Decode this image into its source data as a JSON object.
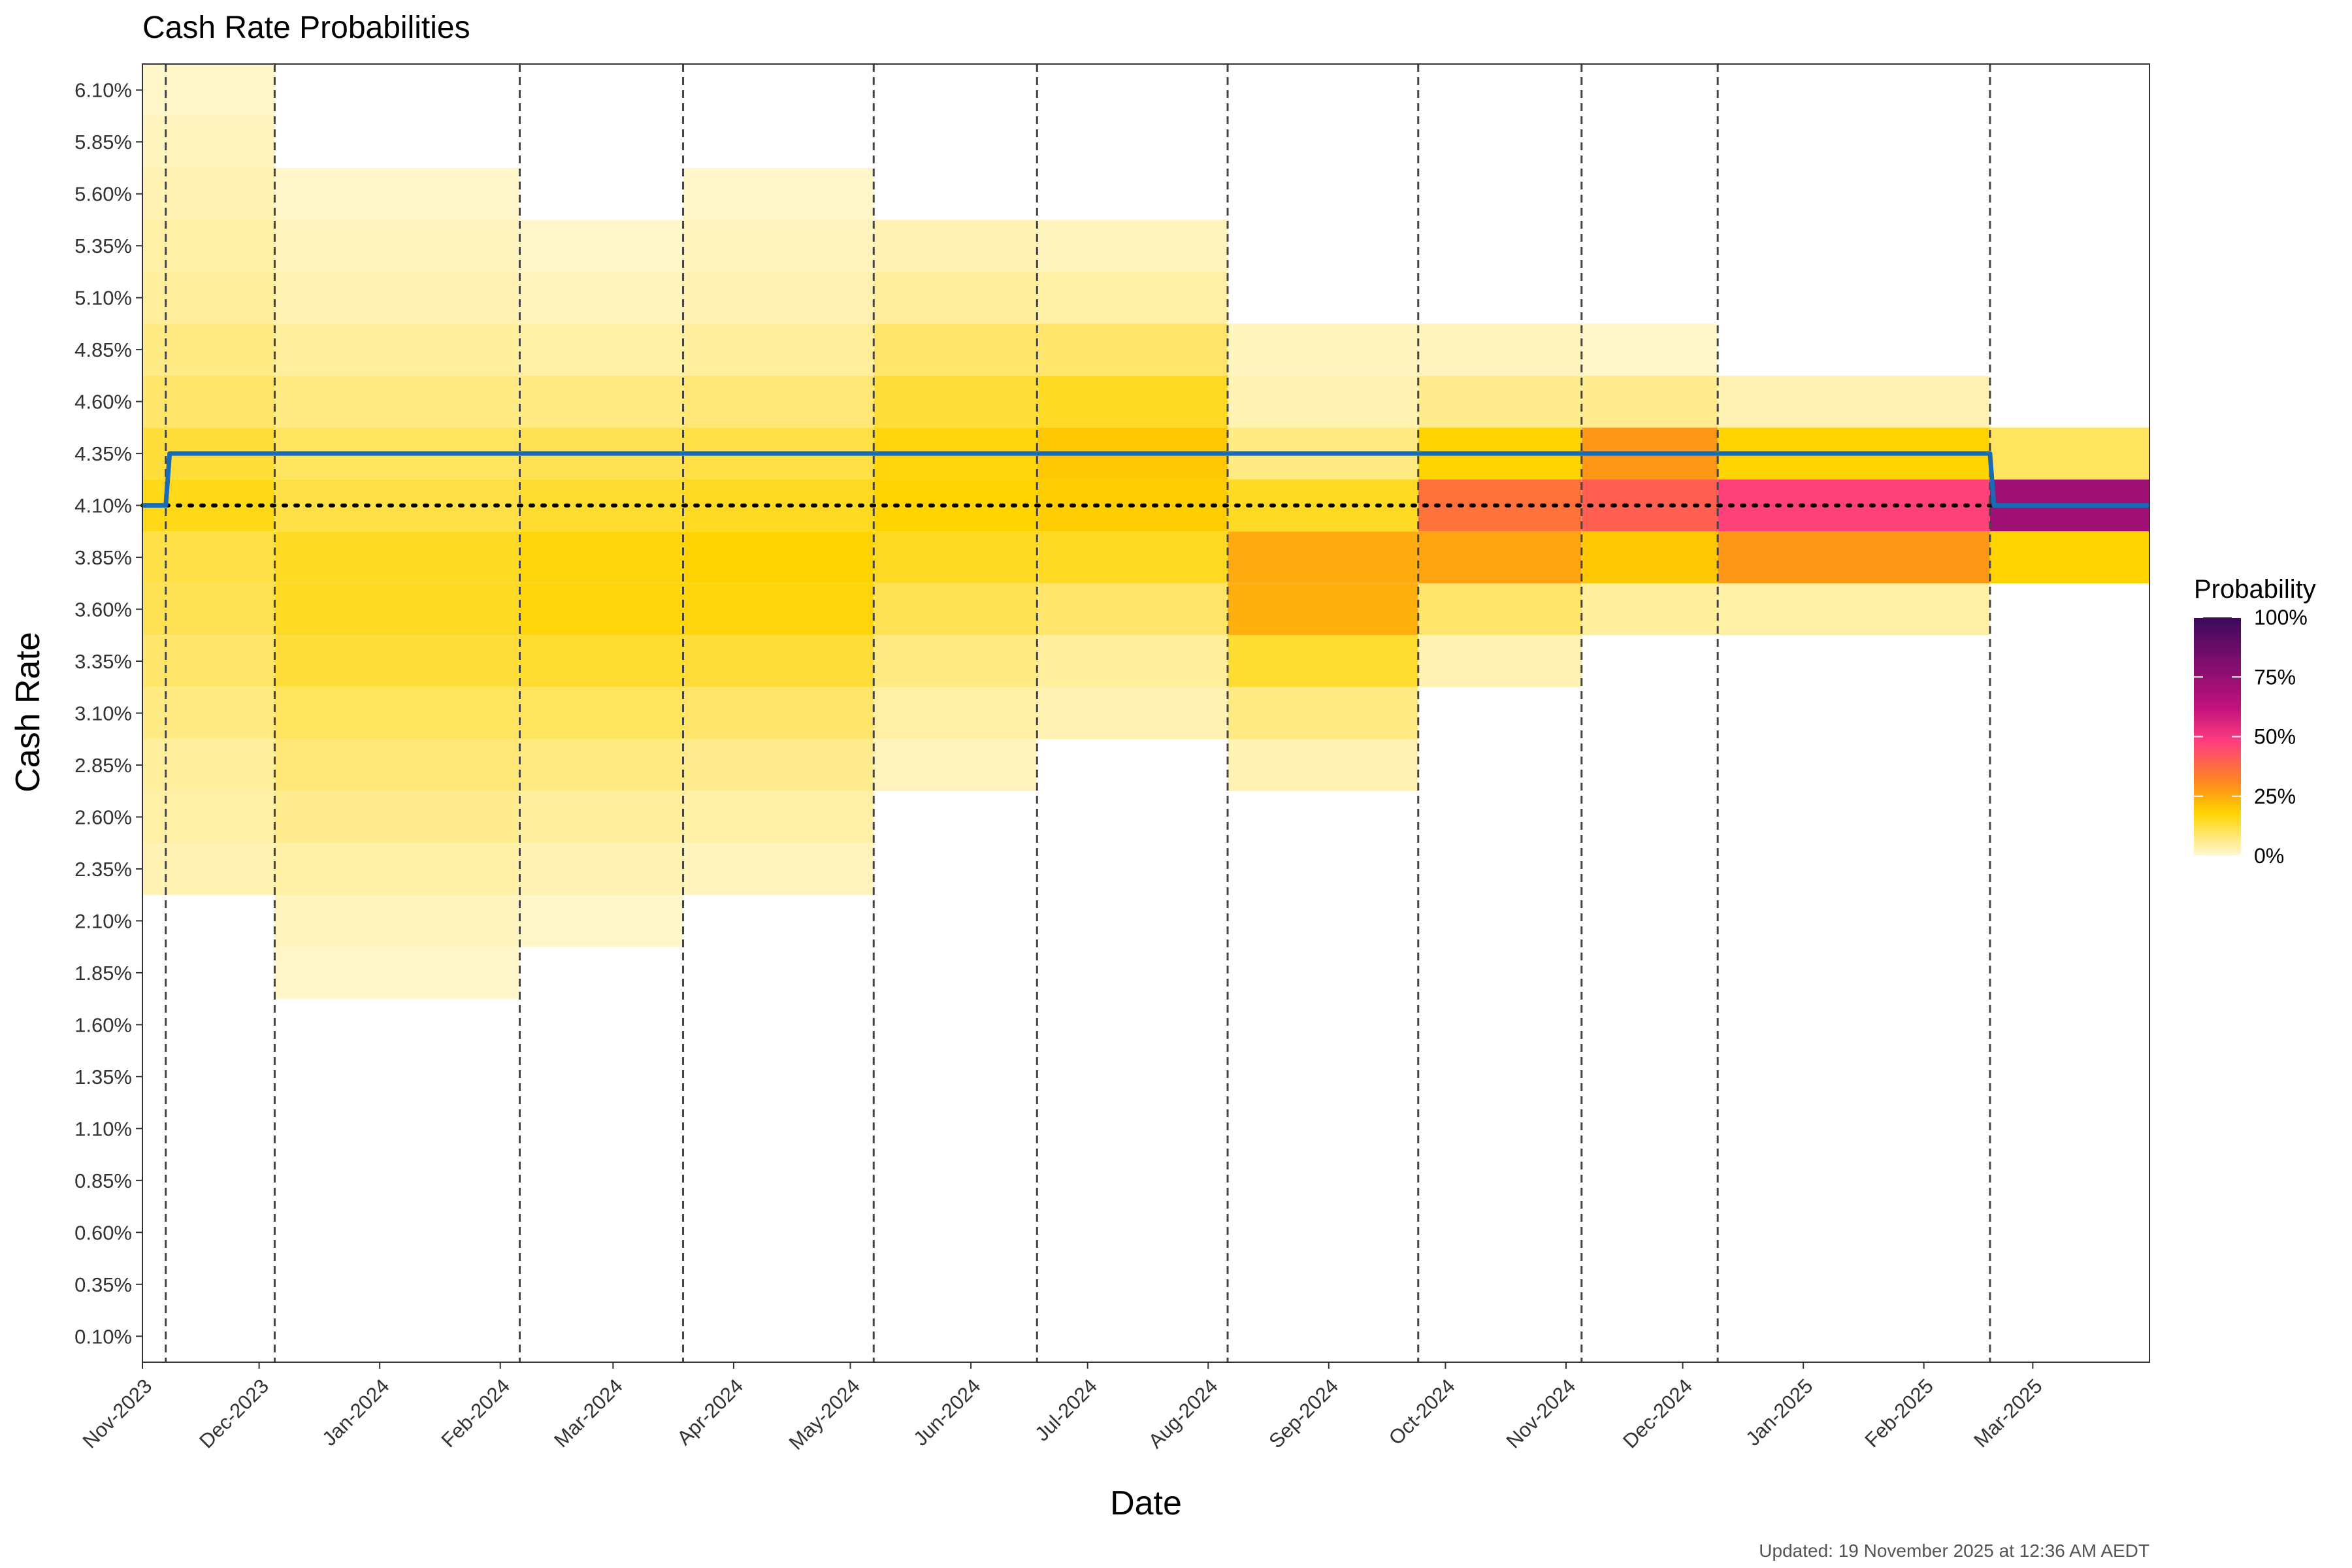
{
  "chart_data": {
    "type": "heatmap",
    "title": "Cash Rate Probabilities",
    "xlabel": "Date",
    "ylabel": "Cash Rate",
    "caption": "Updated: 19 November 2025 at 12:36 AM AEDT",
    "x_range": [
      "2023-11-01",
      "2025-03-31"
    ],
    "y_range": [
      0.1,
      6.1
    ],
    "y_step": 0.25,
    "y_ticks": [
      "0.10%",
      "0.35%",
      "0.60%",
      "0.85%",
      "1.10%",
      "1.35%",
      "1.60%",
      "1.85%",
      "2.10%",
      "2.35%",
      "2.60%",
      "2.85%",
      "3.10%",
      "3.35%",
      "3.60%",
      "3.85%",
      "4.10%",
      "4.35%",
      "4.60%",
      "4.85%",
      "5.10%",
      "5.35%",
      "5.60%",
      "5.85%",
      "6.10%"
    ],
    "x_ticks": [
      {
        "label": "Nov-2023",
        "date": "2023-11-01"
      },
      {
        "label": "Dec-2023",
        "date": "2023-12-01"
      },
      {
        "label": "Jan-2024",
        "date": "2024-01-01"
      },
      {
        "label": "Feb-2024",
        "date": "2024-02-01"
      },
      {
        "label": "Mar-2024",
        "date": "2024-03-01"
      },
      {
        "label": "Apr-2024",
        "date": "2024-04-01"
      },
      {
        "label": "May-2024",
        "date": "2024-05-01"
      },
      {
        "label": "Jun-2024",
        "date": "2024-06-01"
      },
      {
        "label": "Jul-2024",
        "date": "2024-07-01"
      },
      {
        "label": "Aug-2024",
        "date": "2024-08-01"
      },
      {
        "label": "Sep-2024",
        "date": "2024-09-01"
      },
      {
        "label": "Oct-2024",
        "date": "2024-10-01"
      },
      {
        "label": "Nov-2024",
        "date": "2024-11-01"
      },
      {
        "label": "Dec-2024",
        "date": "2024-12-01"
      },
      {
        "label": "Jan-2025",
        "date": "2025-01-01"
      },
      {
        "label": "Feb-2025",
        "date": "2025-02-01"
      },
      {
        "label": "Mar-2025",
        "date": "2025-03-01"
      }
    ],
    "meeting_dates": [
      "2023-11-07",
      "2023-12-05",
      "2024-02-06",
      "2024-03-19",
      "2024-05-07",
      "2024-06-18",
      "2024-08-06",
      "2024-09-24",
      "2024-11-05",
      "2024-12-10",
      "2025-02-18"
    ],
    "cash_rate_line": {
      "color": "#1a6bb5",
      "points": [
        {
          "date": "2023-11-01",
          "rate": 4.1
        },
        {
          "date": "2023-11-07",
          "rate": 4.1
        },
        {
          "date": "2023-11-08",
          "rate": 4.35
        },
        {
          "date": "2025-02-18",
          "rate": 4.35
        },
        {
          "date": "2025-02-19",
          "rate": 4.1
        },
        {
          "date": "2025-03-31",
          "rate": 4.1
        }
      ]
    },
    "reference_line": {
      "rate": 4.1,
      "style": "dotted",
      "color": "#000000"
    },
    "probability_columns": [
      {
        "start": "2023-11-01",
        "end": "2023-12-05",
        "probs": {
          "2.35": 0.03,
          "2.60": 0.04,
          "2.85": 0.05,
          "3.10": 0.07,
          "3.35": 0.09,
          "3.60": 0.11,
          "3.85": 0.12,
          "4.10": 0.16,
          "4.35": 0.13,
          "4.60": 0.09,
          "4.85": 0.07,
          "5.10": 0.05,
          "5.35": 0.04,
          "5.60": 0.03,
          "5.85": 0.02,
          "6.10": 0.01
        }
      },
      {
        "start": "2023-12-05",
        "end": "2024-02-06",
        "probs": {
          "1.85": 0.01,
          "2.10": 0.02,
          "2.35": 0.04,
          "2.60": 0.06,
          "2.85": 0.08,
          "3.10": 0.1,
          "3.35": 0.13,
          "3.60": 0.15,
          "3.85": 0.15,
          "4.10": 0.12,
          "4.35": 0.1,
          "4.60": 0.07,
          "4.85": 0.05,
          "5.10": 0.03,
          "5.35": 0.02,
          "5.60": 0.01
        }
      },
      {
        "start": "2024-02-06",
        "end": "2024-03-19",
        "probs": {
          "2.10": 0.01,
          "2.35": 0.03,
          "2.60": 0.05,
          "2.85": 0.07,
          "3.10": 0.1,
          "3.35": 0.14,
          "3.60": 0.17,
          "3.85": 0.17,
          "4.10": 0.14,
          "4.35": 0.11,
          "4.60": 0.07,
          "4.85": 0.04,
          "5.10": 0.02,
          "5.35": 0.01
        }
      },
      {
        "start": "2024-03-19",
        "end": "2024-05-07",
        "probs": {
          "2.35": 0.02,
          "2.60": 0.04,
          "2.85": 0.06,
          "3.10": 0.09,
          "3.35": 0.13,
          "3.60": 0.17,
          "3.85": 0.18,
          "4.10": 0.15,
          "4.35": 0.12,
          "4.60": 0.08,
          "4.85": 0.05,
          "5.10": 0.03,
          "5.35": 0.02,
          "5.60": 0.01
        }
      },
      {
        "start": "2024-05-07",
        "end": "2024-06-18",
        "probs": {
          "2.85": 0.02,
          "3.10": 0.04,
          "3.35": 0.07,
          "3.60": 0.11,
          "3.85": 0.15,
          "4.10": 0.18,
          "4.35": 0.17,
          "4.60": 0.13,
          "4.85": 0.09,
          "5.10": 0.05,
          "5.35": 0.03
        }
      },
      {
        "start": "2024-06-18",
        "end": "2024-08-06",
        "probs": {
          "3.10": 0.03,
          "3.35": 0.05,
          "3.60": 0.09,
          "3.85": 0.15,
          "4.10": 0.19,
          "4.35": 0.2,
          "4.60": 0.15,
          "4.85": 0.09,
          "5.10": 0.04,
          "5.35": 0.02
        }
      },
      {
        "start": "2024-08-06",
        "end": "2024-09-24",
        "probs": {
          "2.85": 0.03,
          "3.10": 0.07,
          "3.35": 0.14,
          "3.60": 0.24,
          "3.85": 0.25,
          "4.10": 0.15,
          "4.35": 0.07,
          "4.60": 0.03,
          "4.85": 0.02
        }
      },
      {
        "start": "2024-09-24",
        "end": "2024-11-05",
        "probs": {
          "3.35": 0.03,
          "3.60": 0.09,
          "3.85": 0.26,
          "4.10": 0.36,
          "4.35": 0.18,
          "4.60": 0.06,
          "4.85": 0.02
        }
      },
      {
        "start": "2024-11-05",
        "end": "2024-12-10",
        "probs": {
          "3.60": 0.05,
          "3.85": 0.2,
          "4.10": 0.4,
          "4.35": 0.28,
          "4.60": 0.06,
          "4.85": 0.01
        }
      },
      {
        "start": "2024-12-10",
        "end": "2025-02-18",
        "probs": {
          "3.60": 0.04,
          "3.85": 0.28,
          "4.10": 0.47,
          "4.35": 0.18,
          "4.60": 0.03
        }
      },
      {
        "start": "2025-02-18",
        "end": "2025-03-31",
        "probs": {
          "3.85": 0.18,
          "4.10": 0.72,
          "4.35": 0.1
        }
      }
    ],
    "legend": {
      "title": "Probability",
      "labels": [
        "0%",
        "25%",
        "50%",
        "75%",
        "100%"
      ],
      "colors": [
        "#fff8d6",
        "#ffd400",
        "#ff8c1a",
        "#ff3d7f",
        "#c2127d",
        "#3b0a5c"
      ]
    }
  }
}
